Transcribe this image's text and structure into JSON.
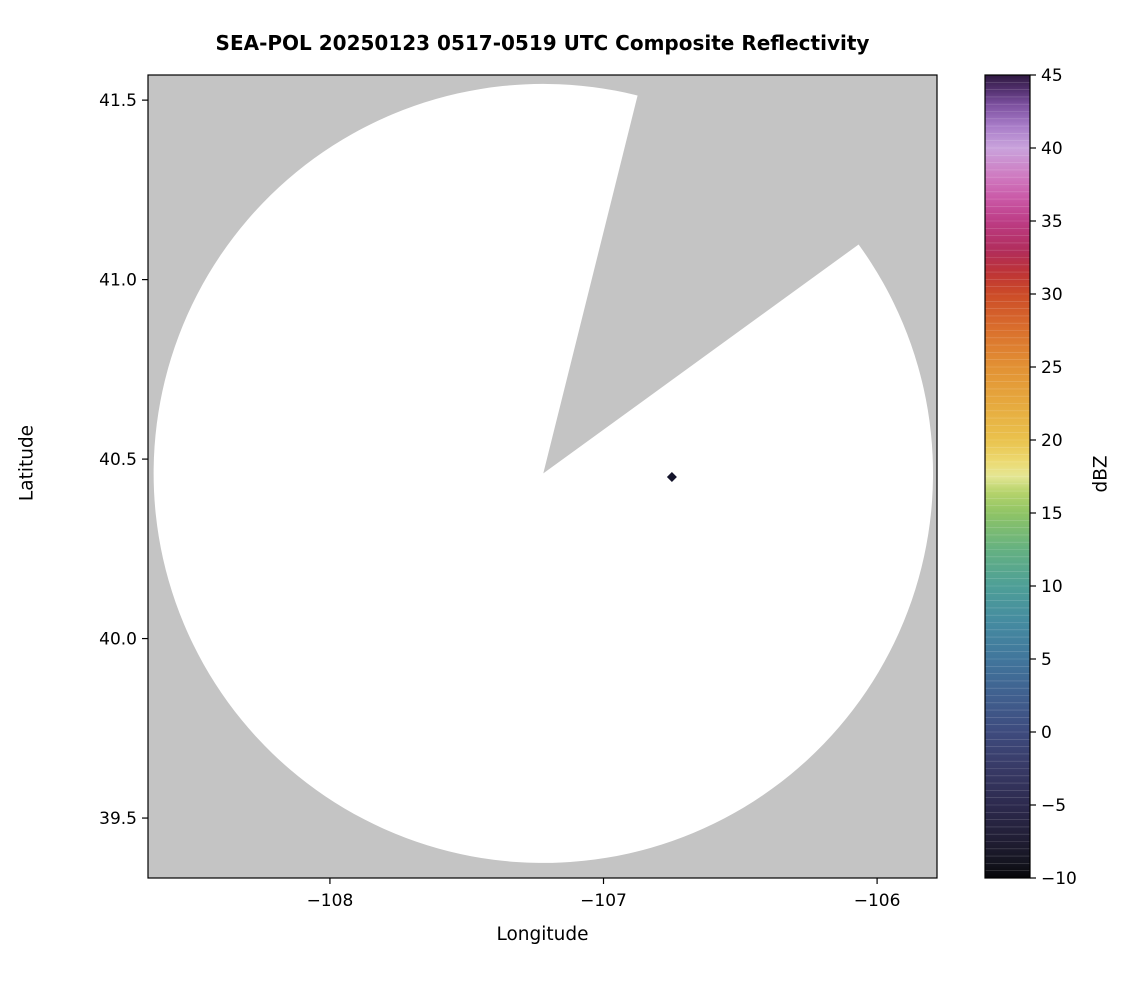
{
  "chart_data": {
    "type": "radar-ppi-map",
    "title": "SEA-POL 20250123 0517-0519 UTC Composite Reflectivity",
    "xlabel": "Longitude",
    "ylabel": "Latitude",
    "axes": {
      "xlim": [
        -108.665,
        -105.781
      ],
      "ylim": [
        39.333,
        41.57
      ],
      "xticks": [
        {
          "v": -108,
          "label": "−108"
        },
        {
          "v": -107,
          "label": "−107"
        },
        {
          "v": -106,
          "label": "−106"
        }
      ],
      "yticks": [
        {
          "v": 41.5,
          "label": "41.5"
        },
        {
          "v": 41.0,
          "label": "41.0"
        },
        {
          "v": 40.5,
          "label": "40.5"
        },
        {
          "v": 40.0,
          "label": "40.0"
        },
        {
          "v": 39.5,
          "label": "39.5"
        }
      ],
      "grid": false
    },
    "plot": {
      "nodata_color": "#c4c4c4",
      "coverage_color": "#ffffff",
      "radar_center": {
        "lon": -107.22,
        "lat": 40.46
      },
      "radius_lat_deg": 1.085,
      "blanked_sector_azimuth_deg": [
        14,
        54
      ],
      "marker": {
        "lon": -106.75,
        "lat": 40.45,
        "shape": "diamond",
        "color": "#14142b"
      }
    },
    "colorbar": {
      "label": "dBZ",
      "min": -10,
      "max": 45,
      "level_step": 0.5,
      "ticks": [
        {
          "v": 45,
          "label": "45"
        },
        {
          "v": 40,
          "label": "40"
        },
        {
          "v": 35,
          "label": "35"
        },
        {
          "v": 30,
          "label": "30"
        },
        {
          "v": 25,
          "label": "25"
        },
        {
          "v": 20,
          "label": "20"
        },
        {
          "v": 15,
          "label": "15"
        },
        {
          "v": 10,
          "label": "10"
        },
        {
          "v": 5,
          "label": "5"
        },
        {
          "v": 0,
          "label": "0"
        },
        {
          "v": -5,
          "label": "−5"
        },
        {
          "v": -10,
          "label": "−10"
        }
      ],
      "stops": [
        {
          "v": -10,
          "c": "#060608"
        },
        {
          "v": -9,
          "c": "#14141f"
        },
        {
          "v": -7.5,
          "c": "#201d33"
        },
        {
          "v": -5,
          "c": "#2d2a4e"
        },
        {
          "v": -2.5,
          "c": "#383a66"
        },
        {
          "v": 0,
          "c": "#3e4b7e"
        },
        {
          "v": 2.5,
          "c": "#40608f"
        },
        {
          "v": 5,
          "c": "#41769c"
        },
        {
          "v": 7.5,
          "c": "#458ba0"
        },
        {
          "v": 10,
          "c": "#4e9f97"
        },
        {
          "v": 12.5,
          "c": "#65b181"
        },
        {
          "v": 15,
          "c": "#8fc465"
        },
        {
          "v": 16.5,
          "c": "#b8d46c"
        },
        {
          "v": 17.5,
          "c": "#e4e694"
        },
        {
          "v": 18.5,
          "c": "#ecda72"
        },
        {
          "v": 20,
          "c": "#eac24d"
        },
        {
          "v": 22.5,
          "c": "#e6a93e"
        },
        {
          "v": 25,
          "c": "#e29134"
        },
        {
          "v": 27.5,
          "c": "#da702d"
        },
        {
          "v": 30,
          "c": "#cc4b28"
        },
        {
          "v": 31.5,
          "c": "#bd3337"
        },
        {
          "v": 33,
          "c": "#b12d5c"
        },
        {
          "v": 35,
          "c": "#bd3d86"
        },
        {
          "v": 36.5,
          "c": "#ca58a6"
        },
        {
          "v": 38,
          "c": "#cf79c0"
        },
        {
          "v": 40,
          "c": "#c9a3dc"
        },
        {
          "v": 41.5,
          "c": "#a87cc8"
        },
        {
          "v": 43,
          "c": "#7b4f9e"
        },
        {
          "v": 44,
          "c": "#52306e"
        },
        {
          "v": 45,
          "c": "#2e1840"
        }
      ]
    }
  }
}
